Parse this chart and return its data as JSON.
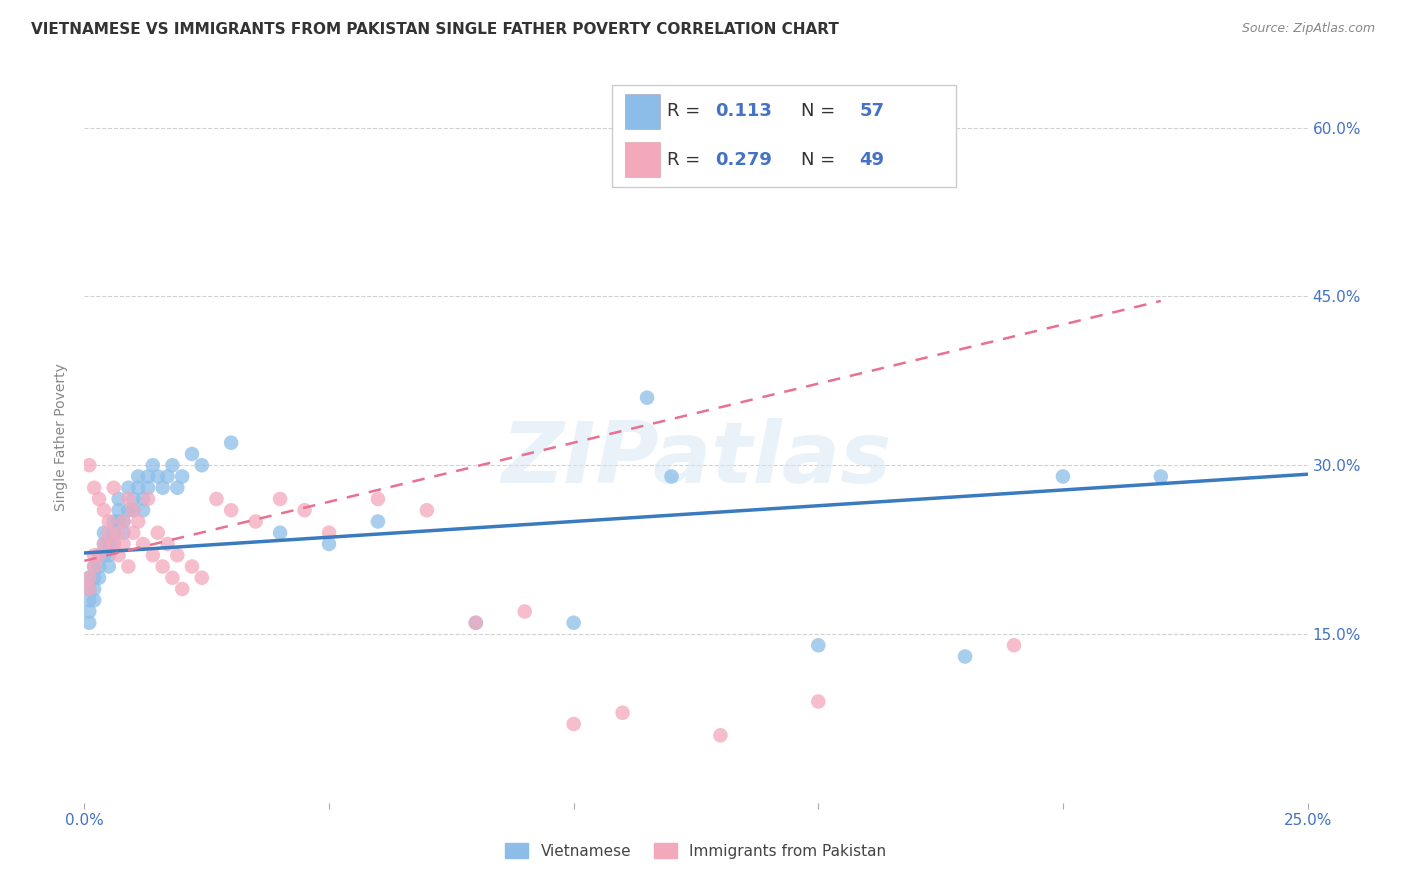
{
  "title": "VIETNAMESE VS IMMIGRANTS FROM PAKISTAN SINGLE FATHER POVERTY CORRELATION CHART",
  "source": "Source: ZipAtlas.com",
  "ylabel": "Single Father Poverty",
  "xlim": [
    0.0,
    0.25
  ],
  "ylim": [
    0.0,
    0.65
  ],
  "xtick_positions": [
    0.0,
    0.05,
    0.1,
    0.15,
    0.2,
    0.25
  ],
  "xticklabels": [
    "0.0%",
    "",
    "",
    "",
    "",
    "25.0%"
  ],
  "ytick_positions": [
    0.0,
    0.15,
    0.3,
    0.45,
    0.6
  ],
  "yticklabels_right": [
    "",
    "15.0%",
    "30.0%",
    "45.0%",
    "60.0%"
  ],
  "r_viet": 0.113,
  "n_viet": 57,
  "r_pak": 0.279,
  "n_pak": 49,
  "color_viet": "#8bbde8",
  "color_pak": "#f4a8bc",
  "color_viet_line": "#3a7abf",
  "color_pak_line": "#e87090",
  "watermark": "ZIPatlas",
  "viet_x": [
    0.001,
    0.001,
    0.001,
    0.001,
    0.001,
    0.002,
    0.002,
    0.002,
    0.002,
    0.003,
    0.003,
    0.003,
    0.004,
    0.004,
    0.004,
    0.005,
    0.005,
    0.005,
    0.006,
    0.006,
    0.006,
    0.007,
    0.007,
    0.007,
    0.008,
    0.008,
    0.009,
    0.009,
    0.01,
    0.01,
    0.011,
    0.011,
    0.012,
    0.012,
    0.013,
    0.013,
    0.014,
    0.015,
    0.016,
    0.017,
    0.018,
    0.019,
    0.02,
    0.022,
    0.024,
    0.03,
    0.04,
    0.05,
    0.06,
    0.08,
    0.1,
    0.115,
    0.12,
    0.15,
    0.18,
    0.2,
    0.22
  ],
  "viet_y": [
    0.2,
    0.19,
    0.18,
    0.17,
    0.16,
    0.21,
    0.2,
    0.19,
    0.18,
    0.22,
    0.21,
    0.2,
    0.23,
    0.22,
    0.24,
    0.22,
    0.23,
    0.21,
    0.25,
    0.24,
    0.23,
    0.26,
    0.25,
    0.27,
    0.25,
    0.24,
    0.26,
    0.28,
    0.27,
    0.26,
    0.29,
    0.28,
    0.27,
    0.26,
    0.29,
    0.28,
    0.3,
    0.29,
    0.28,
    0.29,
    0.3,
    0.28,
    0.29,
    0.31,
    0.3,
    0.32,
    0.24,
    0.23,
    0.25,
    0.16,
    0.16,
    0.36,
    0.29,
    0.14,
    0.13,
    0.29,
    0.29
  ],
  "pak_x": [
    0.001,
    0.001,
    0.001,
    0.002,
    0.002,
    0.002,
    0.003,
    0.003,
    0.004,
    0.004,
    0.005,
    0.005,
    0.006,
    0.006,
    0.007,
    0.007,
    0.008,
    0.008,
    0.009,
    0.009,
    0.01,
    0.01,
    0.011,
    0.012,
    0.013,
    0.014,
    0.015,
    0.016,
    0.017,
    0.018,
    0.019,
    0.02,
    0.022,
    0.024,
    0.027,
    0.03,
    0.035,
    0.04,
    0.045,
    0.05,
    0.06,
    0.07,
    0.08,
    0.09,
    0.1,
    0.11,
    0.13,
    0.15,
    0.19
  ],
  "pak_y": [
    0.2,
    0.19,
    0.3,
    0.21,
    0.22,
    0.28,
    0.22,
    0.27,
    0.23,
    0.26,
    0.24,
    0.25,
    0.23,
    0.28,
    0.22,
    0.24,
    0.25,
    0.23,
    0.27,
    0.21,
    0.26,
    0.24,
    0.25,
    0.23,
    0.27,
    0.22,
    0.24,
    0.21,
    0.23,
    0.2,
    0.22,
    0.19,
    0.21,
    0.2,
    0.27,
    0.26,
    0.25,
    0.27,
    0.26,
    0.24,
    0.27,
    0.26,
    0.16,
    0.17,
    0.07,
    0.08,
    0.06,
    0.09,
    0.14
  ]
}
